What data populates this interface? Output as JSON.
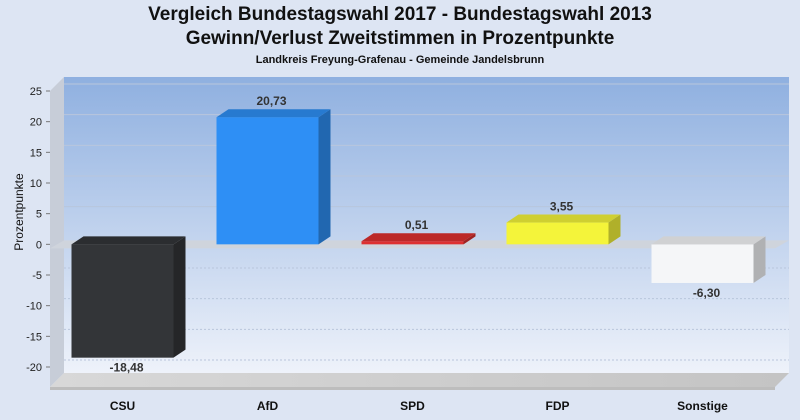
{
  "title_line1": "Vergleich Bundestagswahl 2017 - Bundestagswahl 2013",
  "title_line2": "Gewinn/Verlust Zweitstimmen in Prozentpunkte",
  "subtitle": "Landkreis Freyung-Grafenau - Gemeinde Jandelsbrunn",
  "chart_data": {
    "type": "bar",
    "title": "Vergleich Bundestagswahl 2017 - Bundestagswahl 2013 / Gewinn/Verlust Zweitstimmen in Prozentpunkte",
    "subtitle": "Landkreis Freyung-Grafenau - Gemeinde Jandelsbrunn",
    "ylabel": "Prozentpunkte",
    "xlabel": "",
    "categories": [
      "CSU",
      "AfD",
      "SPD",
      "FDP",
      "Sonstige"
    ],
    "values": [
      -18.48,
      20.73,
      0.51,
      3.55,
      -6.3
    ],
    "value_labels": [
      "-18,48",
      "20,73",
      "0,51",
      "3,55",
      "-6,30"
    ],
    "colors": [
      "#333538",
      "#2e8ff5",
      "#dd3030",
      "#f4f43a",
      "#f5f6f8"
    ],
    "ylim": [
      -20,
      25
    ],
    "yticks": [
      -20,
      -15,
      -10,
      -5,
      0,
      5,
      10,
      15,
      20,
      25
    ],
    "grid": true,
    "legend": "none"
  }
}
